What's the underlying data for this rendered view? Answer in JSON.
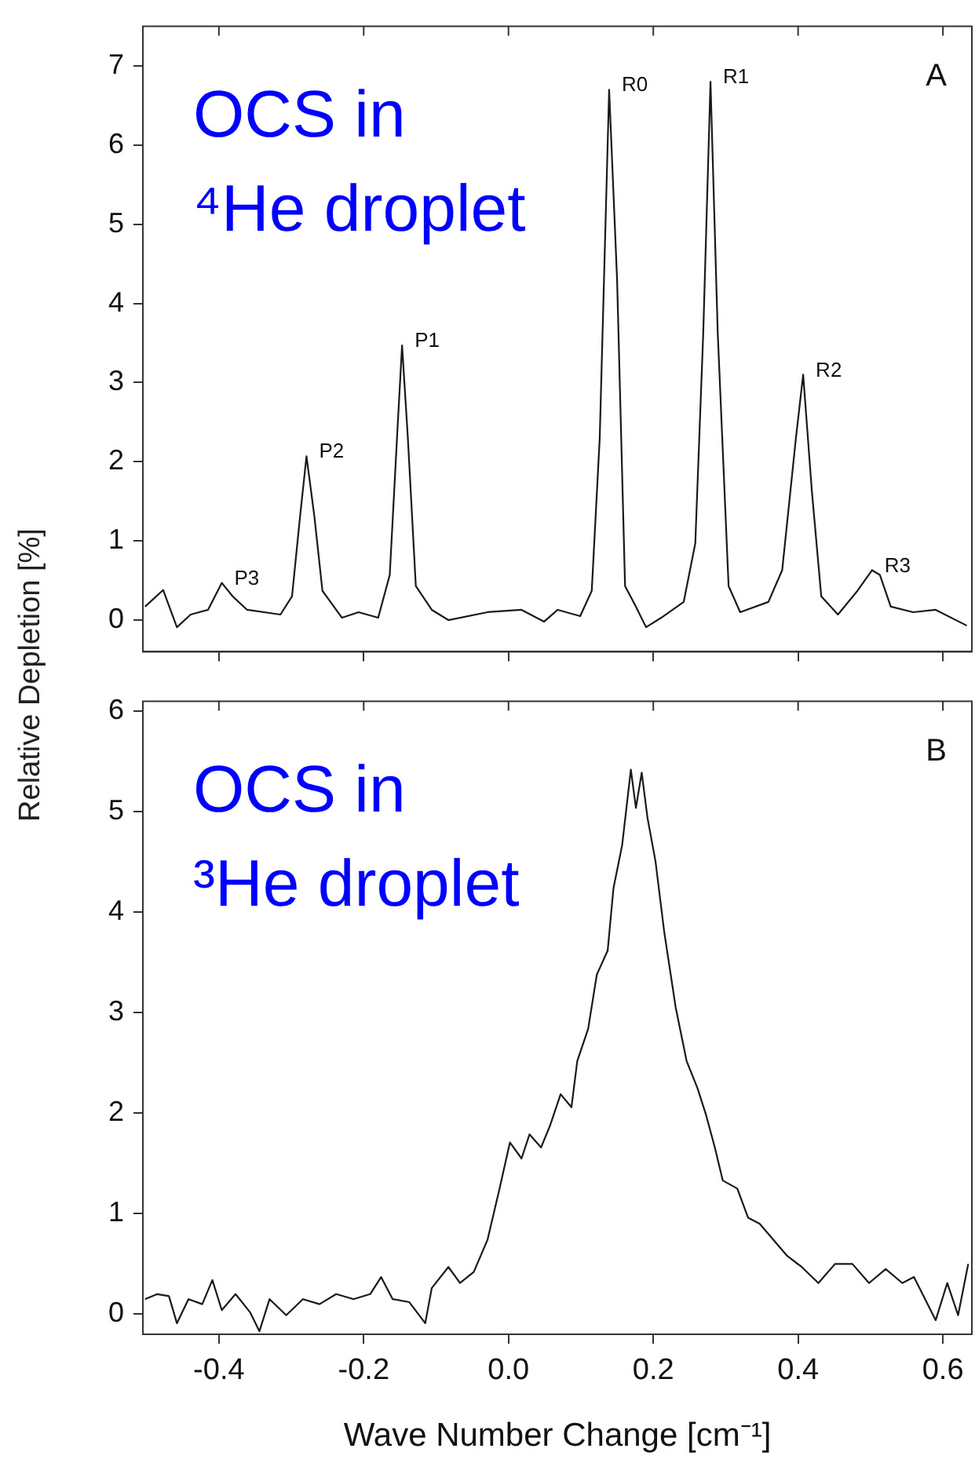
{
  "chart_data": [
    {
      "type": "line",
      "annotations": [
        "OCS in\n⁴He droplet",
        "A",
        {
          "text": "P3",
          "x": -0.396,
          "y": 0.47
        },
        {
          "text": "P2",
          "x": -0.279,
          "y": 2.07
        },
        {
          "text": "P1",
          "x": -0.147,
          "y": 3.47
        },
        {
          "text": "R0",
          "x": 0.139,
          "y": 6.7
        },
        {
          "text": "R1",
          "x": 0.279,
          "y": 6.8
        },
        {
          "text": "R2",
          "x": 0.407,
          "y": 3.1
        },
        {
          "text": "R3",
          "x": 0.502,
          "y": 0.63
        }
      ],
      "xlim": [
        -0.505,
        0.64
      ],
      "xticks": [
        -0.4,
        -0.2,
        0.0,
        0.2,
        0.4,
        0.6
      ],
      "ylim": [
        -0.4,
        7.5
      ],
      "yticks": [
        0,
        1,
        2,
        3,
        4,
        5,
        6,
        7
      ],
      "tick_labels": "y",
      "grid": false,
      "legend": false,
      "marker": "none",
      "series": [
        {
          "color": "#1a1a1a",
          "x": [
            -0.502,
            -0.477,
            -0.458,
            -0.439,
            -0.415,
            -0.396,
            -0.381,
            -0.361,
            -0.315,
            -0.299,
            -0.288,
            -0.279,
            -0.268,
            -0.257,
            -0.23,
            -0.207,
            -0.18,
            -0.164,
            -0.154,
            -0.147,
            -0.139,
            -0.128,
            -0.106,
            -0.083,
            -0.029,
            0.018,
            0.049,
            0.068,
            0.099,
            0.115,
            0.126,
            0.139,
            0.15,
            0.161,
            0.176,
            0.19,
            0.211,
            0.242,
            0.258,
            0.269,
            0.279,
            0.289,
            0.304,
            0.32,
            0.359,
            0.378,
            0.397,
            0.407,
            0.419,
            0.432,
            0.455,
            0.482,
            0.502,
            0.513,
            0.528,
            0.559,
            0.59,
            0.633
          ],
          "values": [
            0.17,
            0.38,
            -0.09,
            0.07,
            0.13,
            0.47,
            0.3,
            0.13,
            0.07,
            0.3,
            1.3,
            2.07,
            1.3,
            0.37,
            0.03,
            0.1,
            0.03,
            0.57,
            2.3,
            3.47,
            2.3,
            0.43,
            0.13,
            0.0,
            0.1,
            0.13,
            -0.02,
            0.13,
            0.05,
            0.37,
            2.3,
            6.7,
            4.3,
            0.43,
            0.17,
            -0.09,
            0.03,
            0.23,
            0.97,
            3.63,
            6.8,
            3.63,
            0.43,
            0.1,
            0.23,
            0.63,
            2.3,
            3.1,
            1.63,
            0.3,
            0.07,
            0.37,
            0.63,
            0.57,
            0.17,
            0.1,
            0.13,
            -0.07
          ]
        }
      ]
    },
    {
      "type": "line",
      "xlabel": "Wave Number Change [cm⁻¹]",
      "ylabel": "Relative Depletion [%]",
      "annotations": [
        "OCS in\n³He droplet",
        "B"
      ],
      "xlim": [
        -0.505,
        0.64
      ],
      "xticks": [
        {
          "value": -0.4,
          "label": "-0.4"
        },
        {
          "value": -0.2,
          "label": "-0.2"
        },
        {
          "value": 0.0,
          "label": "0.0"
        },
        {
          "value": 0.2,
          "label": "0.2"
        },
        {
          "value": 0.4,
          "label": "0.4"
        },
        {
          "value": 0.6,
          "label": "0.6"
        }
      ],
      "ylim": [
        -0.2,
        6.1
      ],
      "yticks": [
        0,
        1,
        2,
        3,
        4,
        5,
        6
      ],
      "grid": false,
      "legend": false,
      "marker": "none",
      "series": [
        {
          "color": "#1a1a1a",
          "x": [
            -0.502,
            -0.485,
            -0.469,
            -0.458,
            -0.442,
            -0.423,
            -0.409,
            -0.396,
            -0.377,
            -0.357,
            -0.344,
            -0.33,
            -0.307,
            -0.284,
            -0.261,
            -0.238,
            -0.214,
            -0.191,
            -0.176,
            -0.16,
            -0.137,
            -0.115,
            -0.106,
            -0.083,
            -0.067,
            -0.048,
            -0.029,
            -0.013,
            0.002,
            0.018,
            0.029,
            0.045,
            0.057,
            0.072,
            0.087,
            0.095,
            0.11,
            0.122,
            0.137,
            0.145,
            0.157,
            0.169,
            0.176,
            0.184,
            0.192,
            0.203,
            0.215,
            0.231,
            0.246,
            0.261,
            0.273,
            0.285,
            0.296,
            0.316,
            0.331,
            0.347,
            0.366,
            0.385,
            0.405,
            0.428,
            0.451,
            0.475,
            0.498,
            0.521,
            0.544,
            0.56,
            0.59,
            0.606,
            0.621,
            0.635
          ],
          "values": [
            0.15,
            0.2,
            0.18,
            -0.09,
            0.15,
            0.1,
            0.34,
            0.04,
            0.2,
            0.02,
            -0.17,
            0.15,
            -0.01,
            0.15,
            0.1,
            0.2,
            0.15,
            0.2,
            0.37,
            0.15,
            0.12,
            -0.09,
            0.26,
            0.47,
            0.31,
            0.42,
            0.74,
            1.23,
            1.71,
            1.55,
            1.79,
            1.66,
            1.87,
            2.19,
            2.06,
            2.52,
            2.84,
            3.38,
            3.62,
            4.24,
            4.67,
            5.42,
            5.04,
            5.39,
            4.94,
            4.51,
            3.81,
            3.05,
            2.52,
            2.25,
            1.98,
            1.66,
            1.33,
            1.25,
            0.96,
            0.9,
            0.74,
            0.58,
            0.47,
            0.31,
            0.5,
            0.5,
            0.31,
            0.45,
            0.31,
            0.37,
            -0.06,
            0.31,
            -0.01,
            0.5
          ]
        }
      ]
    }
  ]
}
